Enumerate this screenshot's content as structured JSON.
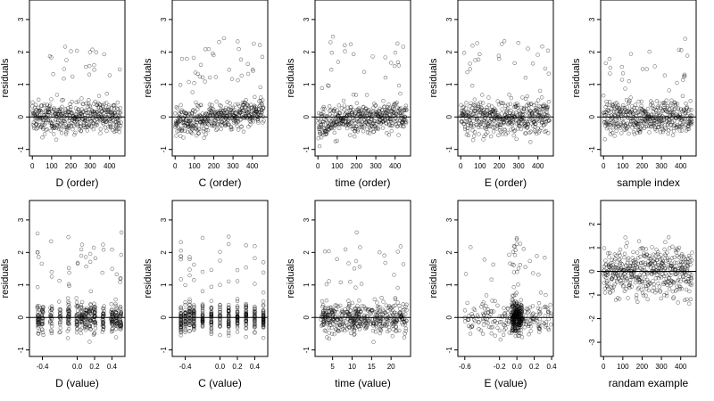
{
  "chart_data": [
    {
      "id": "p1",
      "type": "scatter",
      "xlabel": "D (order)",
      "ylabel": "residuals",
      "xlim": [
        -15,
        480
      ],
      "ylim": [
        -1.2,
        3.6
      ],
      "xticks": [
        0,
        100,
        200,
        300,
        400
      ],
      "yticks": [
        -1,
        0,
        1,
        2,
        3
      ],
      "hline": 0,
      "n": 460,
      "xmode": "index",
      "pattern": "order-general"
    },
    {
      "id": "p2",
      "type": "scatter",
      "xlabel": "C (order)",
      "ylabel": "residuals",
      "xlim": [
        -15,
        480
      ],
      "ylim": [
        -1.2,
        3.6
      ],
      "xticks": [
        0,
        100,
        200,
        300,
        400
      ],
      "yticks": [
        -1,
        0,
        1,
        2,
        3
      ],
      "hline": 0,
      "n": 460,
      "xmode": "index",
      "pattern": "order-slope"
    },
    {
      "id": "p3",
      "type": "scatter",
      "xlabel": "time (order)",
      "ylabel": "residuals",
      "xlim": [
        -15,
        480
      ],
      "ylim": [
        -1.2,
        3.6
      ],
      "xticks": [
        0,
        100,
        200,
        300,
        400
      ],
      "yticks": [
        -1,
        0,
        1,
        2,
        3
      ],
      "hline": 0,
      "n": 460,
      "xmode": "index",
      "pattern": "order-time"
    },
    {
      "id": "p4",
      "type": "scatter",
      "xlabel": "E (order)",
      "ylabel": "residuals",
      "xlim": [
        -15,
        480
      ],
      "ylim": [
        -1.2,
        3.6
      ],
      "xticks": [
        0,
        100,
        200,
        300,
        400
      ],
      "yticks": [
        -1,
        0,
        1,
        2,
        3
      ],
      "hline": 0,
      "n": 460,
      "xmode": "index",
      "pattern": "order-E"
    },
    {
      "id": "p5",
      "type": "scatter",
      "xlabel": "sample index",
      "ylabel": "residuals",
      "xlim": [
        -15,
        480
      ],
      "ylim": [
        -1.2,
        3.6
      ],
      "xticks": [
        0,
        100,
        200,
        300,
        400
      ],
      "yticks": [
        -1,
        0,
        1,
        2,
        3
      ],
      "hline": 0,
      "n": 460,
      "xmode": "index",
      "pattern": "sample-index"
    },
    {
      "id": "p6",
      "type": "scatter",
      "xlabel": "D (value)",
      "ylabel": "residuals",
      "xlim": [
        -0.55,
        0.55
      ],
      "ylim": [
        -1.2,
        3.6
      ],
      "xticks": [
        -0.4,
        0,
        0.2,
        0.4
      ],
      "xticklabels": [
        "-0.4",
        "0.0",
        "0.2",
        "0.4"
      ],
      "yticks": [
        -1,
        0,
        1,
        2,
        3
      ],
      "hline": 0,
      "n": 460,
      "xmode": "value",
      "pattern": "value-D"
    },
    {
      "id": "p7",
      "type": "scatter",
      "xlabel": "C (value)",
      "ylabel": "residuals",
      "xlim": [
        -0.55,
        0.55
      ],
      "ylim": [
        -1.2,
        3.6
      ],
      "xticks": [
        -0.4,
        0,
        0.2,
        0.4
      ],
      "xticklabels": [
        "-0.4",
        "0.0",
        "0.2",
        "0.4"
      ],
      "yticks": [
        -1,
        0,
        1,
        2,
        3
      ],
      "hline": 0,
      "n": 460,
      "xmode": "value",
      "pattern": "value-C"
    },
    {
      "id": "p8",
      "type": "scatter",
      "xlabel": "time (value)",
      "ylabel": "residuals",
      "xlim": [
        0.5,
        25
      ],
      "ylim": [
        -1.2,
        3.6
      ],
      "xticks": [
        5,
        10,
        15,
        20
      ],
      "xticklabels": [
        "5",
        "10",
        "15",
        "20"
      ],
      "yticks": [
        -1,
        0,
        1,
        2,
        3
      ],
      "hline": 0,
      "n": 460,
      "xmode": "value",
      "pattern": "value-time"
    },
    {
      "id": "p9",
      "type": "scatter",
      "xlabel": "E (value)",
      "ylabel": "residuals",
      "xlim": [
        -0.68,
        0.42
      ],
      "ylim": [
        -1.2,
        3.6
      ],
      "xticks": [
        -0.6,
        -0.2,
        0,
        0.2,
        0.4
      ],
      "xticklabels": [
        "-0.6",
        "-0.2",
        "0.0",
        "0.2",
        "0.4"
      ],
      "yticks": [
        -1,
        0,
        1,
        2,
        3
      ],
      "hline": 0,
      "n": 460,
      "xmode": "value",
      "pattern": "value-E"
    },
    {
      "id": "p10",
      "type": "scatter",
      "xlabel": "randam example",
      "ylabel": "residuals",
      "xlim": [
        -15,
        480
      ],
      "ylim": [
        -3.6,
        3.0
      ],
      "xticks": [
        0,
        100,
        200,
        300,
        400
      ],
      "yticks": [
        -3,
        -2,
        -1,
        0,
        1,
        2
      ],
      "hline": 0,
      "n": 460,
      "xmode": "index",
      "pattern": "random"
    }
  ]
}
